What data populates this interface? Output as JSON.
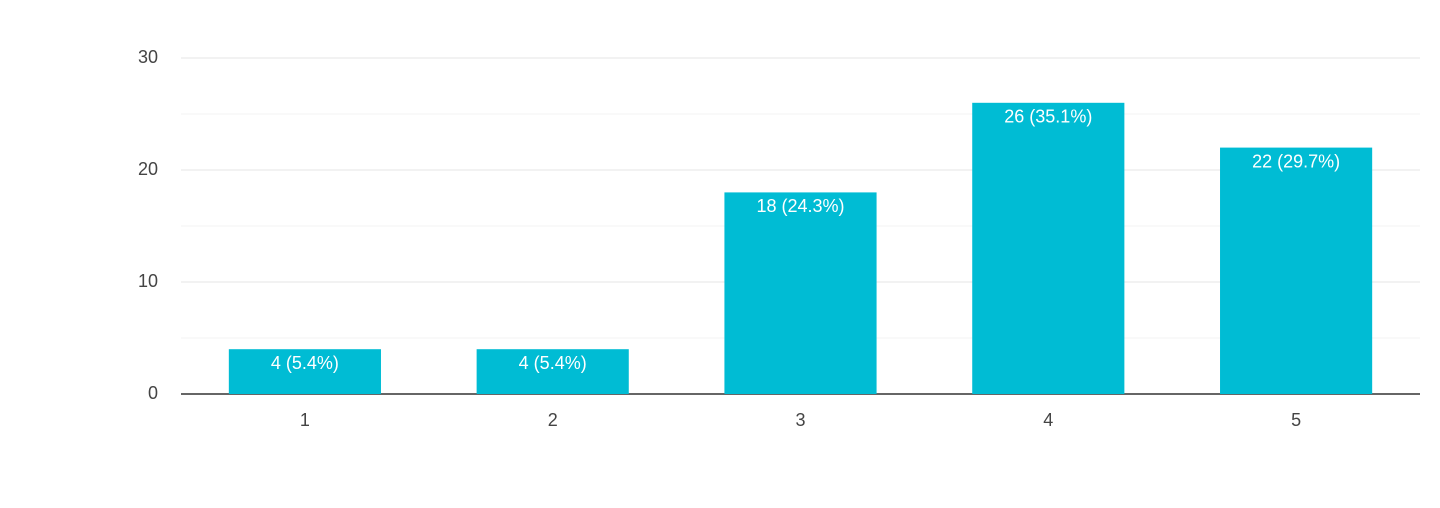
{
  "chart_data": {
    "type": "bar",
    "categories": [
      "1",
      "2",
      "3",
      "4",
      "5"
    ],
    "values": [
      4,
      4,
      18,
      26,
      22
    ],
    "value_labels": [
      "4 (5.4%)",
      "4 (5.4%)",
      "18 (24.3%)",
      "26 (35.1%)",
      "22 (29.7%)"
    ],
    "color": "#00bcd4",
    "ylim": [
      0,
      30
    ],
    "yticks": [
      0,
      10,
      20,
      30
    ],
    "minor_gridlines": [
      5,
      15,
      25
    ],
    "grid": true
  }
}
